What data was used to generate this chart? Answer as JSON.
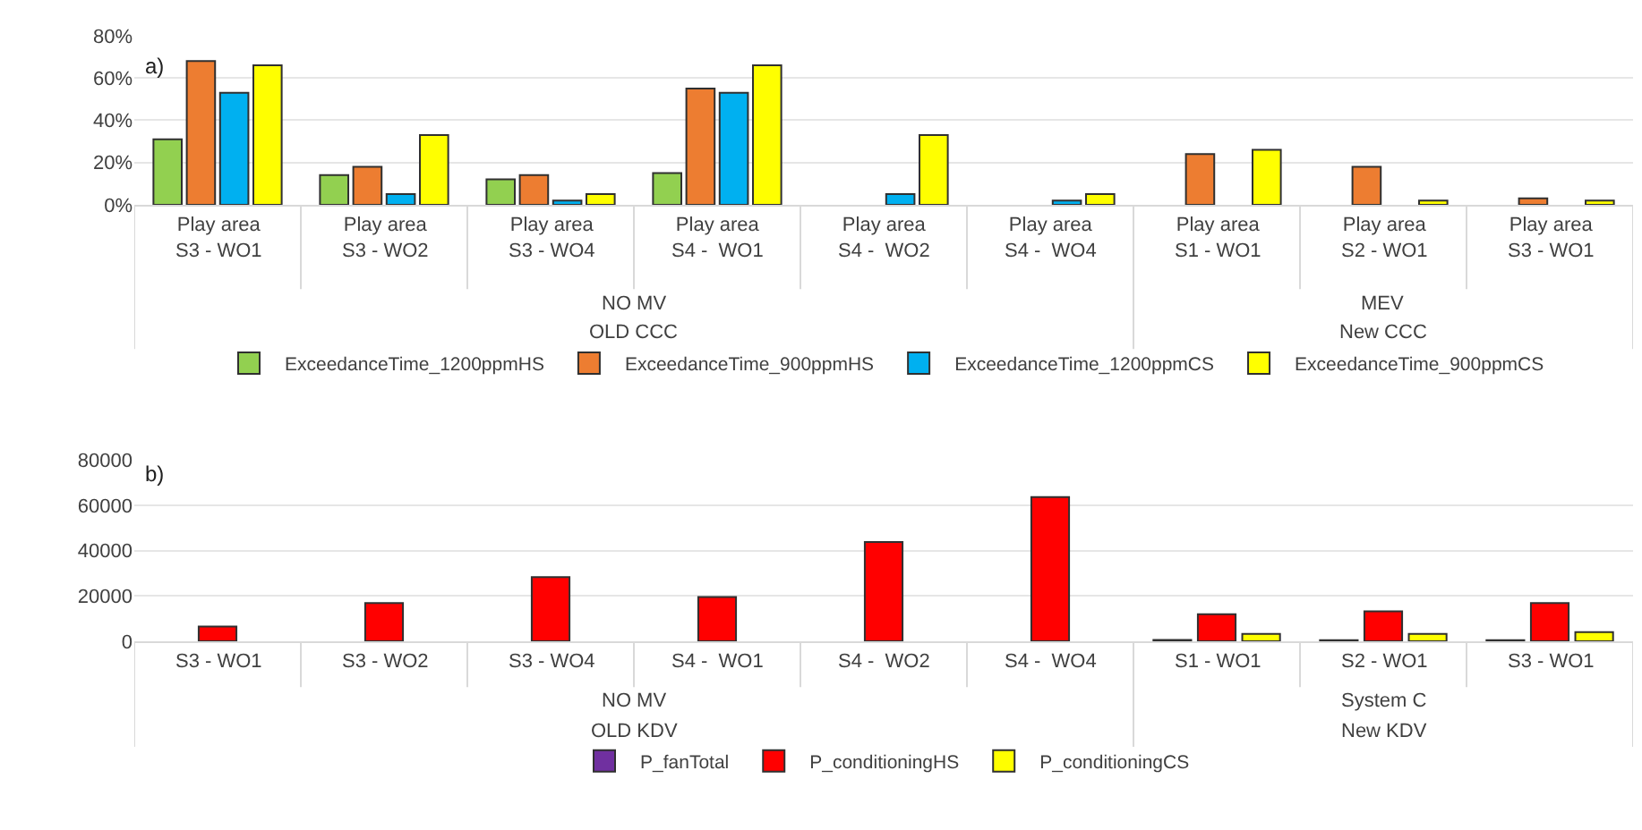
{
  "chart_data": [
    {
      "type": "bar",
      "grid": "y",
      "legend": "bottom",
      "annotations": [
        "a)",
        "NO MV",
        "OLD CCC",
        "MEV",
        "New CCC"
      ],
      "categories": [
        "Play area\nS3 - WO1",
        "Play area\nS3 - WO2",
        "Play area\nS3 - WO4",
        "Play area\nS4 -  WO1",
        "Play area\nS4 -  WO2",
        "Play area\nS4 -  WO4",
        "Play area\nS1 - WO1",
        "Play area\nS2 - WO1",
        "Play area\nS3 - WO1"
      ],
      "series": [
        {
          "name": "ExceedanceTime_1200ppmHS",
          "color": "#92d050",
          "values": [
            31,
            14,
            12,
            15,
            null,
            null,
            null,
            null,
            null
          ]
        },
        {
          "name": "ExceedanceTime_900ppmHS",
          "color": "#ed7d31",
          "values": [
            68,
            18,
            14,
            55,
            null,
            null,
            24,
            18,
            3
          ]
        },
        {
          "name": "ExceedanceTime_1200ppmCS",
          "color": "#00b0f0",
          "values": [
            53,
            5,
            2,
            53,
            5,
            2,
            null,
            null,
            null
          ]
        },
        {
          "name": "ExceedanceTime_900ppmCS",
          "color": "#ffff00",
          "values": [
            66,
            33,
            5,
            66,
            33,
            5,
            26,
            2,
            2
          ]
        }
      ],
      "ylim": [
        0,
        80
      ],
      "yticks": [
        {
          "value": 0,
          "label": "0%"
        },
        {
          "value": 20,
          "label": "20%"
        },
        {
          "value": 40,
          "label": "40%"
        },
        {
          "value": 60,
          "label": "60%"
        },
        {
          "value": 80,
          "label": "80%"
        }
      ]
    },
    {
      "type": "bar",
      "grid": "y",
      "legend": "bottom",
      "annotations": [
        "b)",
        "NO MV",
        "OLD KDV",
        "System C",
        "New KDV"
      ],
      "categories": [
        "S3 - WO1",
        "S3 - WO2",
        "S3 - WO4",
        "S4 -  WO1",
        "S4 -  WO2",
        "S4 -  WO4",
        "S1 - WO1",
        "S2 - WO1",
        "S3 - WO1"
      ],
      "series": [
        {
          "name": "P_fanTotal",
          "color": "#7030a0",
          "values": [
            null,
            null,
            null,
            null,
            null,
            null,
            600,
            500,
            500
          ]
        },
        {
          "name": "P_conditioningHS",
          "color": "#ff0000",
          "values": [
            6500,
            16900,
            28300,
            19500,
            43800,
            63600,
            11900,
            13200,
            16900
          ]
        },
        {
          "name": "P_conditioningCS",
          "color": "#ffff00",
          "values": [
            null,
            null,
            null,
            null,
            null,
            null,
            3300,
            3300,
            4100
          ]
        }
      ],
      "ylim": [
        0,
        80000
      ],
      "yticks": [
        0,
        20000,
        40000,
        60000,
        80000
      ]
    }
  ]
}
